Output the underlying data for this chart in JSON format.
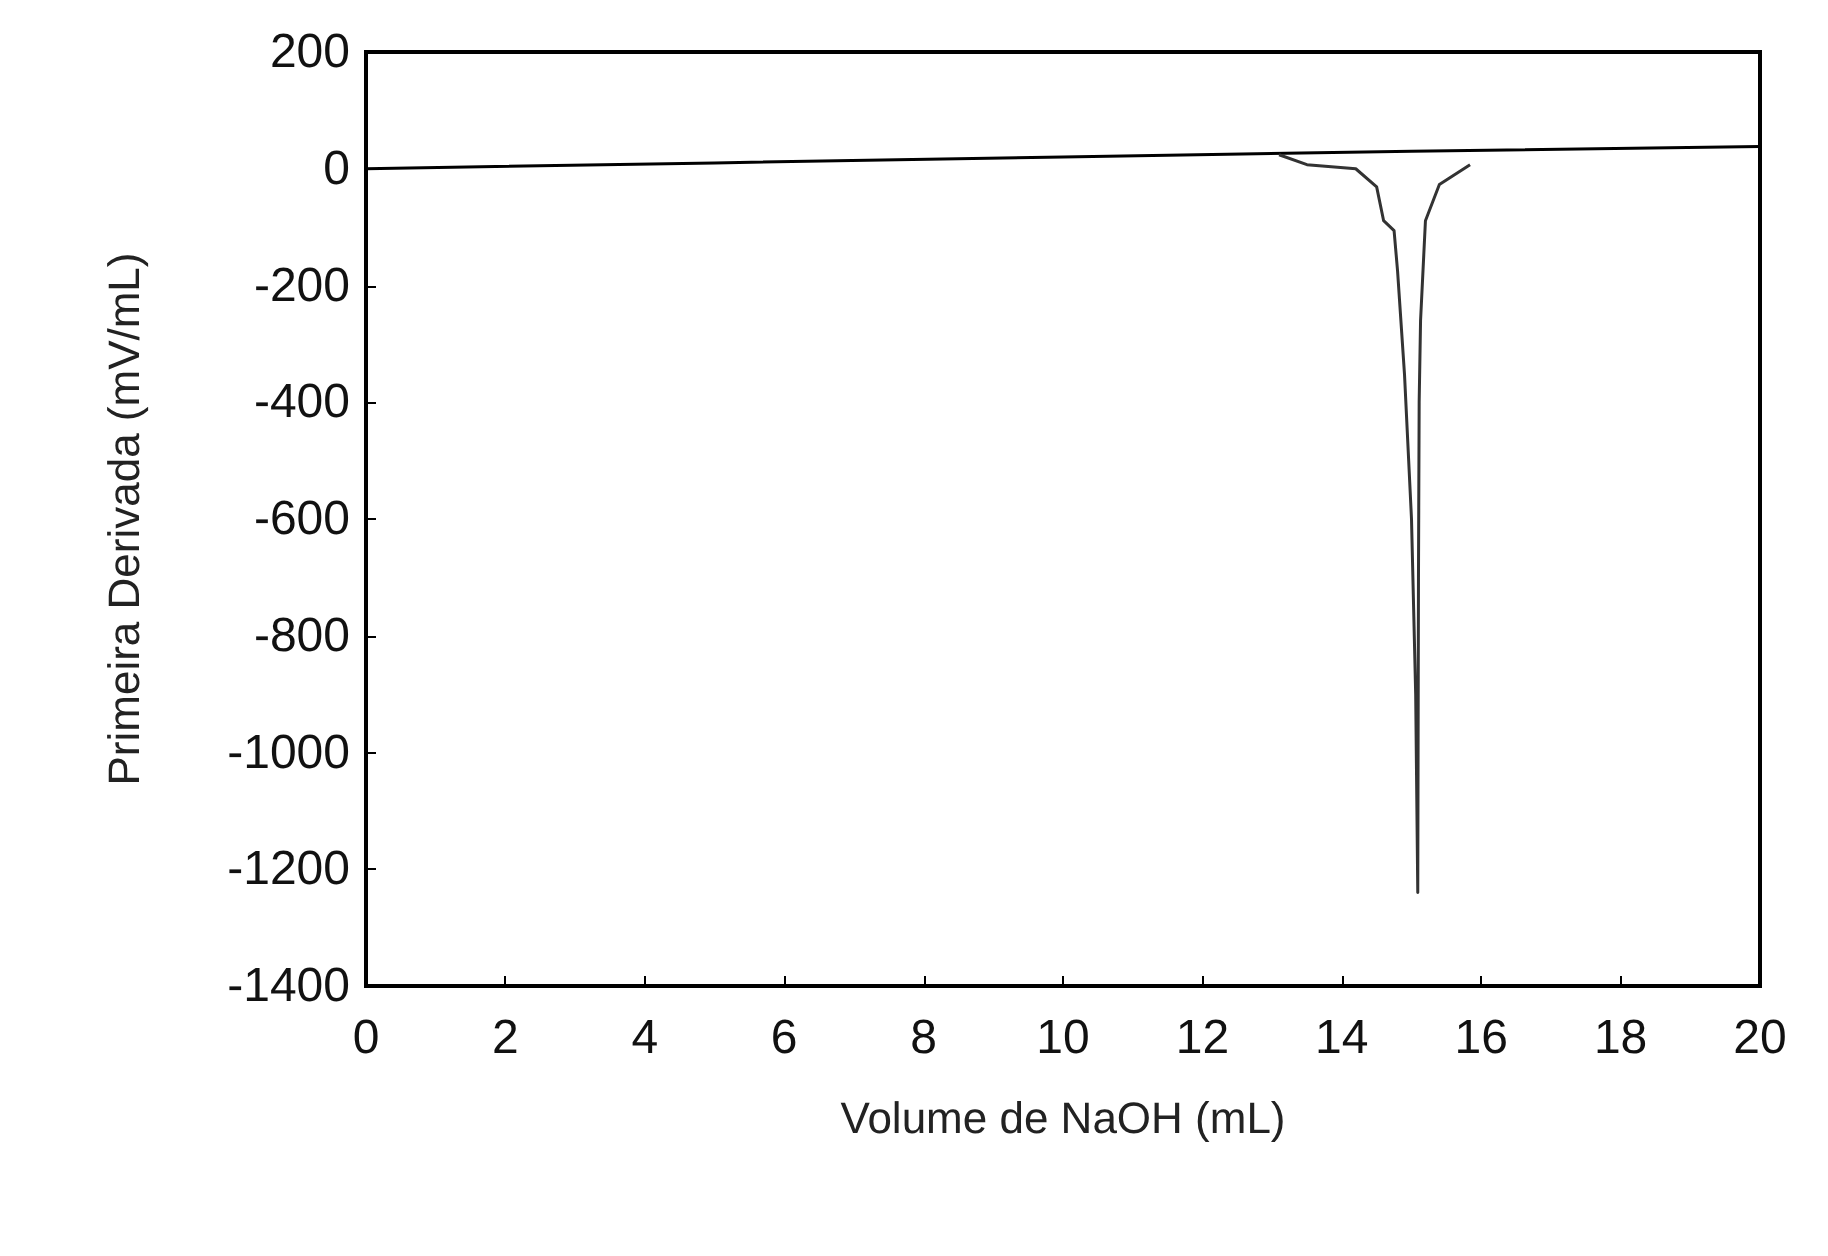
{
  "chart_data": {
    "type": "line",
    "xlabel": "Volume de NaOH (mL)",
    "ylabel": "Primeira Derivada (mV/mL)",
    "xlim": [
      0,
      20
    ],
    "xticks": [
      0,
      2,
      4,
      6,
      8,
      10,
      12,
      14,
      16,
      18,
      20
    ],
    "ylim": [
      -1400,
      200
    ],
    "yticks": [
      -1400,
      -1200,
      -1000,
      -800,
      -600,
      -400,
      -200,
      0,
      200
    ],
    "grid": false,
    "marker": "none",
    "line_style": "solid",
    "series": [
      {
        "color": "#000000",
        "x": [
          0,
          5,
          10,
          15,
          20
        ],
        "values": [
          0,
          10,
          20,
          30,
          38
        ]
      },
      {
        "color": "#333333",
        "x": [
          13.1,
          13.5,
          14.2,
          14.5,
          14.6,
          14.75,
          14.8,
          14.9,
          15.0,
          15.06,
          15.09,
          15.1,
          15.11,
          15.13,
          15.2,
          15.4,
          15.84
        ],
        "values": [
          24,
          7,
          0,
          -31,
          -89,
          -106,
          -175,
          -353,
          -600,
          -900,
          -1240,
          -700,
          -400,
          -260,
          -89,
          -27,
          7
        ]
      }
    ]
  }
}
